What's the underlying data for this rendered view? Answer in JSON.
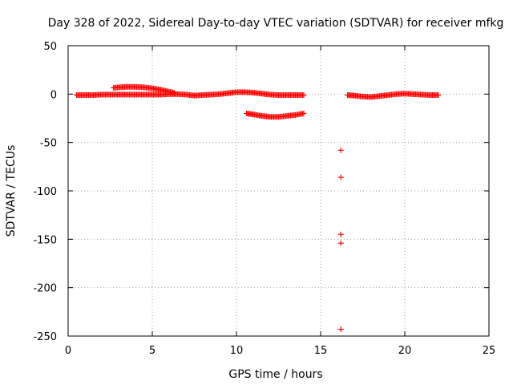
{
  "chart_data": {
    "type": "scatter",
    "title": "Day 328 of 2022, Sidereal Day-to-day VTEC variation (SDTVAR) for receiver mfkg",
    "xlabel": "GPS time / hours",
    "ylabel": "SDTVAR / TECUs",
    "xlim": [
      0,
      25
    ],
    "ylim": [
      -250,
      50
    ],
    "xticks": [
      "0",
      "5",
      "10",
      "15",
      "20",
      "25"
    ],
    "yticks": [
      "50",
      "0",
      "-50",
      "-100",
      "-150",
      "-200",
      "-250"
    ],
    "grid": true,
    "marker": "plus",
    "color": "#ff0000",
    "series": [
      {
        "values_xy": [
          [
            0.5,
            -1
          ],
          [
            1.0,
            -1
          ],
          [
            1.5,
            -1
          ],
          [
            2.0,
            -0.5
          ],
          [
            2.5,
            -0.5
          ],
          [
            3.0,
            -0.5
          ],
          [
            3.5,
            -0.5
          ],
          [
            4.0,
            -0.5
          ],
          [
            4.5,
            -0.5
          ],
          [
            5.0,
            -0.5
          ],
          [
            5.5,
            -0.5
          ],
          [
            6.0,
            0
          ],
          [
            6.5,
            0
          ],
          [
            7.0,
            -0.5
          ],
          [
            7.5,
            -1.5
          ],
          [
            8.0,
            -1
          ],
          [
            8.5,
            -0.5
          ],
          [
            9.0,
            0
          ],
          [
            9.5,
            1
          ],
          [
            10.0,
            2
          ],
          [
            10.5,
            2
          ],
          [
            11.0,
            1.5
          ],
          [
            11.5,
            0.5
          ],
          [
            12.0,
            -0.5
          ],
          [
            12.5,
            -1
          ],
          [
            13.0,
            -1
          ],
          [
            13.5,
            -1
          ],
          [
            14.0,
            -1
          ]
        ]
      },
      {
        "values_xy": [
          [
            2.7,
            6.5
          ],
          [
            3.0,
            7
          ],
          [
            3.5,
            7.5
          ],
          [
            4.0,
            7.5
          ],
          [
            4.5,
            7
          ],
          [
            5.0,
            6
          ],
          [
            5.5,
            4.5
          ],
          [
            6.0,
            2.5
          ],
          [
            6.3,
            1.5
          ]
        ]
      },
      {
        "values_xy": [
          [
            10.6,
            -20
          ],
          [
            11.0,
            -21
          ],
          [
            11.5,
            -22.5
          ],
          [
            12.0,
            -23.5
          ],
          [
            12.5,
            -23.5
          ],
          [
            13.0,
            -22.5
          ],
          [
            13.5,
            -21.5
          ],
          [
            14.0,
            -20
          ]
        ]
      },
      {
        "values_xy": [
          [
            16.2,
            -58
          ],
          [
            16.2,
            -86
          ],
          [
            16.2,
            -145
          ],
          [
            16.2,
            -154
          ],
          [
            16.2,
            -243
          ]
        ]
      },
      {
        "values_xy": [
          [
            16.6,
            -1
          ],
          [
            17.0,
            -1.5
          ],
          [
            17.5,
            -2.5
          ],
          [
            18.0,
            -3
          ],
          [
            18.5,
            -2
          ],
          [
            19.0,
            -1
          ],
          [
            19.5,
            0
          ],
          [
            20.0,
            0.5
          ],
          [
            20.5,
            0
          ],
          [
            21.0,
            -0.5
          ],
          [
            21.5,
            -1
          ],
          [
            22.0,
            -1
          ]
        ]
      }
    ]
  }
}
